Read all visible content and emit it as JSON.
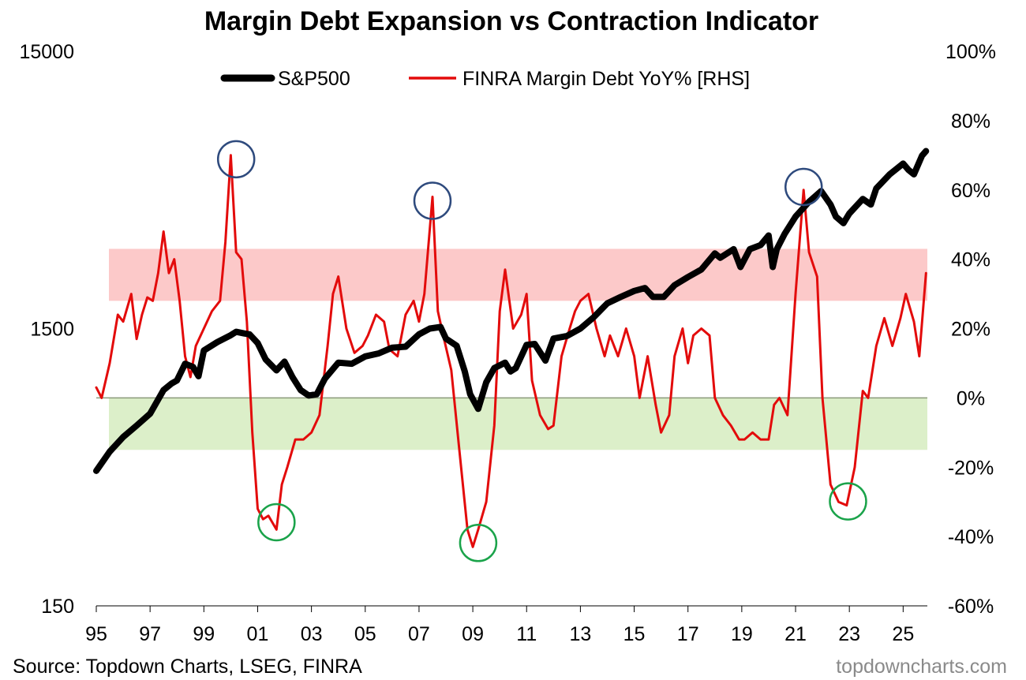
{
  "chart_data": {
    "type": "line",
    "title": "Margin Debt Expansion vs Contraction Indicator",
    "source": "Source: Topdown Charts, LSEG, FINRA",
    "watermark": "topdowncharts.com",
    "x_range": [
      1995.0,
      2025.9
    ],
    "x_tick_values": [
      1995,
      1997,
      1999,
      2001,
      2003,
      2005,
      2007,
      2009,
      2011,
      2013,
      2015,
      2017,
      2019,
      2021,
      2023,
      2025
    ],
    "x_tick_labels": [
      "95",
      "97",
      "99",
      "01",
      "03",
      "05",
      "07",
      "09",
      "11",
      "13",
      "15",
      "17",
      "19",
      "21",
      "23",
      "25"
    ],
    "y_left": {
      "scale": "log",
      "range": [
        150,
        15000
      ],
      "tick_values": [
        150,
        1500,
        15000
      ],
      "tick_labels": [
        "150",
        "1500",
        "15000"
      ]
    },
    "y_right": {
      "scale": "linear",
      "range": [
        -60,
        100
      ],
      "tick_values": [
        -60,
        -40,
        -20,
        0,
        20,
        40,
        60,
        80,
        100
      ],
      "tick_labels": [
        "-60%",
        "-40%",
        "-20%",
        "0%",
        "20%",
        "40%",
        "60%",
        "80%",
        "100%"
      ]
    },
    "bands": [
      {
        "name": "expansion-zone",
        "axis": "right",
        "from": 28,
        "to": 43,
        "color": "#fcc9c9"
      },
      {
        "name": "contraction-zone",
        "axis": "right",
        "from": -15,
        "to": 0,
        "color": "#dcefc9"
      }
    ],
    "zero_line": {
      "axis": "right",
      "value": 0,
      "color": "#8a9a7a"
    },
    "series": [
      {
        "name": "S&P500",
        "axis": "left",
        "color": "#000000",
        "x": [
          1995.0,
          1995.5,
          1996.0,
          1996.5,
          1997.0,
          1997.5,
          1997.8,
          1998.0,
          1998.3,
          1998.6,
          1998.8,
          1999.0,
          1999.5,
          2000.0,
          2000.2,
          2000.5,
          2000.7,
          2001.0,
          2001.3,
          2001.7,
          2002.0,
          2002.3,
          2002.6,
          2002.9,
          2003.2,
          2003.5,
          2004.0,
          2004.5,
          2005.0,
          2005.5,
          2006.0,
          2006.5,
          2007.0,
          2007.4,
          2007.8,
          2008.0,
          2008.4,
          2008.7,
          2008.9,
          2009.2,
          2009.5,
          2009.8,
          2010.2,
          2010.4,
          2010.6,
          2011.0,
          2011.3,
          2011.7,
          2012.0,
          2012.5,
          2013.0,
          2013.5,
          2014.0,
          2014.5,
          2015.0,
          2015.4,
          2015.7,
          2016.1,
          2016.5,
          2017.0,
          2017.5,
          2018.0,
          2018.2,
          2018.7,
          2018.95,
          2019.3,
          2019.7,
          2020.0,
          2020.15,
          2020.3,
          2020.6,
          2021.0,
          2021.5,
          2021.95,
          2022.3,
          2022.5,
          2022.78,
          2023.0,
          2023.5,
          2023.8,
          2024.0,
          2024.5,
          2025.0,
          2025.2,
          2025.4,
          2025.7,
          2025.85
        ],
        "values": [
          460,
          540,
          610,
          670,
          740,
          900,
          950,
          975,
          1120,
          1090,
          1010,
          1250,
          1340,
          1420,
          1460,
          1440,
          1430,
          1330,
          1160,
          1060,
          1140,
          1000,
          900,
          860,
          870,
          990,
          1130,
          1120,
          1190,
          1220,
          1280,
          1290,
          1430,
          1500,
          1520,
          1380,
          1300,
          1050,
          870,
          770,
          960,
          1080,
          1130,
          1050,
          1080,
          1310,
          1320,
          1150,
          1380,
          1410,
          1500,
          1650,
          1850,
          1950,
          2050,
          2100,
          1950,
          1950,
          2150,
          2300,
          2450,
          2800,
          2700,
          2900,
          2500,
          2900,
          3000,
          3250,
          2500,
          2900,
          3300,
          3800,
          4300,
          4700,
          4200,
          3800,
          3600,
          3900,
          4400,
          4200,
          4800,
          5400,
          5900,
          5600,
          5400,
          6300,
          6550
        ]
      },
      {
        "name": "FINRA Margin Debt YoY% [RHS]",
        "axis": "right",
        "color": "#e30b0b",
        "x": [
          1995.0,
          1995.2,
          1995.5,
          1995.8,
          1996.0,
          1996.3,
          1996.5,
          1996.7,
          1996.9,
          1997.1,
          1997.3,
          1997.5,
          1997.7,
          1997.9,
          1998.1,
          1998.3,
          1998.5,
          1998.7,
          1999.0,
          1999.3,
          1999.6,
          1999.8,
          2000.0,
          2000.2,
          2000.4,
          2000.6,
          2000.8,
          2001.0,
          2001.2,
          2001.4,
          2001.7,
          2001.9,
          2002.1,
          2002.4,
          2002.7,
          2003.0,
          2003.3,
          2003.6,
          2003.8,
          2004.0,
          2004.3,
          2004.6,
          2004.9,
          2005.1,
          2005.4,
          2005.7,
          2005.9,
          2006.2,
          2006.5,
          2006.8,
          2007.0,
          2007.2,
          2007.5,
          2007.7,
          2007.9,
          2008.2,
          2008.5,
          2008.8,
          2009.0,
          2009.2,
          2009.5,
          2009.8,
          2010.0,
          2010.2,
          2010.5,
          2010.8,
          2011.0,
          2011.2,
          2011.5,
          2011.8,
          2012.0,
          2012.3,
          2012.6,
          2012.8,
          2013.0,
          2013.3,
          2013.6,
          2013.9,
          2014.1,
          2014.4,
          2014.7,
          2015.0,
          2015.2,
          2015.5,
          2015.8,
          2016.0,
          2016.3,
          2016.5,
          2016.8,
          2017.0,
          2017.2,
          2017.5,
          2017.8,
          2018.0,
          2018.3,
          2018.6,
          2018.9,
          2019.1,
          2019.4,
          2019.7,
          2020.0,
          2020.2,
          2020.4,
          2020.7,
          2021.0,
          2021.3,
          2021.5,
          2021.8,
          2022.0,
          2022.3,
          2022.6,
          2022.9,
          2023.2,
          2023.5,
          2023.7,
          2024.0,
          2024.3,
          2024.6,
          2024.9,
          2025.1,
          2025.4,
          2025.6,
          2025.85
        ],
        "values": [
          3,
          0,
          10,
          24,
          22,
          30,
          17,
          24,
          29,
          28,
          36,
          48,
          36,
          40,
          28,
          12,
          6,
          15,
          20,
          25,
          28,
          45,
          70,
          42,
          40,
          22,
          -10,
          -32,
          -35,
          -34,
          -38,
          -25,
          -20,
          -12,
          -12,
          -10,
          -5,
          15,
          30,
          35,
          20,
          13,
          15,
          18,
          24,
          22,
          14,
          12,
          24,
          28,
          22,
          30,
          58,
          25,
          18,
          8,
          -15,
          -38,
          -43,
          -38,
          -30,
          -8,
          25,
          37,
          20,
          24,
          30,
          5,
          -5,
          -9,
          -8,
          12,
          20,
          25,
          28,
          30,
          20,
          12,
          18,
          12,
          20,
          12,
          0,
          12,
          -2,
          -10,
          -5,
          12,
          20,
          10,
          18,
          20,
          18,
          0,
          -5,
          -8,
          -12,
          -12,
          -10,
          -12,
          -12,
          -2,
          0,
          -5,
          30,
          60,
          42,
          35,
          0,
          -25,
          -30,
          -31,
          -20,
          2,
          0,
          15,
          23,
          15,
          23,
          30,
          22,
          12,
          36
        ]
      }
    ],
    "markers": [
      {
        "kind": "peak",
        "x": 2000.2,
        "y": 70,
        "color": "#2e4a7d"
      },
      {
        "kind": "peak",
        "x": 2007.5,
        "y": 58,
        "color": "#2e4a7d"
      },
      {
        "kind": "peak",
        "x": 2021.3,
        "y": 62,
        "color": "#2e4a7d"
      },
      {
        "kind": "trough",
        "x": 2001.7,
        "y": -37,
        "color": "#1aa34a"
      },
      {
        "kind": "trough",
        "x": 2009.2,
        "y": -43,
        "color": "#1aa34a"
      },
      {
        "kind": "trough",
        "x": 2022.95,
        "y": -31,
        "color": "#1aa34a"
      }
    ]
  }
}
